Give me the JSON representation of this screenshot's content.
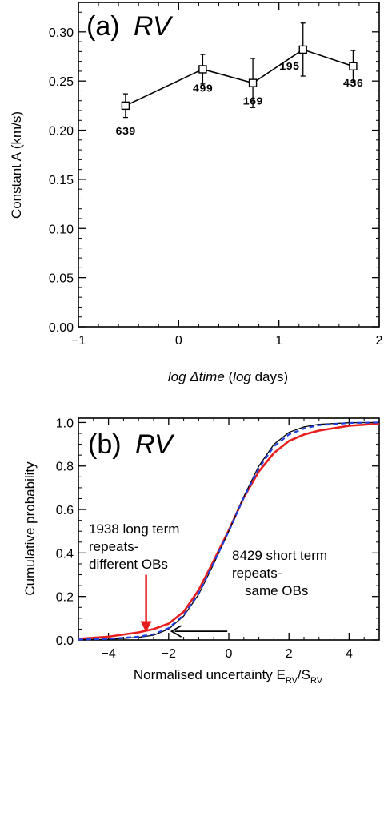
{
  "chart_data": [
    {
      "type": "line",
      "panel_label": "(a)",
      "title": "RV",
      "xlabel_parts": [
        "log",
        " Δtime",
        "  (",
        "log",
        " days)"
      ],
      "ylabel": "Constant A (km/s)",
      "xlim": [
        -1,
        2
      ],
      "ylim": [
        0,
        0.33
      ],
      "x_ticks": [
        -1,
        0,
        1,
        2
      ],
      "y_ticks": [
        "0.00",
        "0.05",
        "0.10",
        "0.15",
        "0.20",
        "0.25",
        "0.30"
      ],
      "y_tick_values": [
        0,
        0.05,
        0.1,
        0.15,
        0.2,
        0.25,
        0.3
      ],
      "marker": "open-square",
      "points": [
        {
          "x": -0.53,
          "y": 0.225,
          "err": 0.012,
          "label": "639"
        },
        {
          "x": 0.24,
          "y": 0.262,
          "err": 0.015,
          "label": "499"
        },
        {
          "x": 0.74,
          "y": 0.248,
          "err": 0.025,
          "label": "169"
        },
        {
          "x": 1.24,
          "y": 0.282,
          "err": 0.027,
          "label": "195"
        },
        {
          "x": 1.74,
          "y": 0.265,
          "err": 0.016,
          "label": "436"
        }
      ]
    },
    {
      "type": "line",
      "panel_label": "(b)",
      "title": "RV",
      "xlabel_parts": [
        "Normalised uncertainty E",
        "RV",
        "/S",
        "RV"
      ],
      "ylabel": "Cumulative probability",
      "xlim": [
        -5,
        5
      ],
      "ylim": [
        0,
        1.02
      ],
      "x_ticks": [
        -4,
        -2,
        0,
        2,
        4
      ],
      "y_ticks": [
        "0.0",
        "0.2",
        "0.4",
        "0.6",
        "0.8",
        "1.0"
      ],
      "y_tick_values": [
        0,
        0.2,
        0.4,
        0.6,
        0.8,
        1.0
      ],
      "series": [
        {
          "color": "#000000",
          "style": "solid",
          "x": [
            -5,
            -4,
            -3,
            -2.5,
            -2,
            -1.5,
            -1,
            -0.5,
            0,
            0.5,
            1,
            1.5,
            2,
            2.5,
            3,
            4,
            5
          ],
          "y": [
            0.001,
            0.003,
            0.012,
            0.022,
            0.05,
            0.11,
            0.21,
            0.35,
            0.5,
            0.66,
            0.8,
            0.9,
            0.955,
            0.98,
            0.992,
            0.999,
            1.0
          ]
        },
        {
          "color": "#1f3fe0",
          "style": "dashed",
          "x": [
            -5,
            -4,
            -3,
            -2.5,
            -2,
            -1.5,
            -1,
            -0.5,
            0,
            0.5,
            1,
            1.5,
            2,
            2.5,
            3,
            4,
            5
          ],
          "y": [
            0.002,
            0.005,
            0.015,
            0.027,
            0.055,
            0.115,
            0.215,
            0.355,
            0.5,
            0.655,
            0.79,
            0.89,
            0.945,
            0.972,
            0.988,
            0.998,
            1.0
          ]
        },
        {
          "color": "#e81e1e",
          "style": "solid",
          "x": [
            -5,
            -4,
            -3,
            -2.5,
            -2,
            -1.5,
            -1,
            -0.5,
            0,
            0.5,
            1,
            1.5,
            2,
            2.5,
            3,
            4,
            5
          ],
          "y": [
            0.005,
            0.015,
            0.035,
            0.05,
            0.075,
            0.13,
            0.23,
            0.365,
            0.505,
            0.655,
            0.775,
            0.86,
            0.915,
            0.945,
            0.963,
            0.985,
            0.995
          ]
        }
      ],
      "annotations": [
        {
          "text": [
            "1938 long term",
            "repeats-",
            "different OBs"
          ],
          "color": "#000000"
        },
        {
          "text": [
            "8429 short term",
            "repeats-",
            "same OBs"
          ],
          "color": "#000000"
        }
      ],
      "arrows": [
        {
          "color": "#e81e1e",
          "direction": "down",
          "target_x": -2.75,
          "target_y": 0.035,
          "from_y": 0.3
        },
        {
          "color": "#000000",
          "direction": "left",
          "target_x": -1.9,
          "target_y": 0.04,
          "from_x": -0.05
        }
      ]
    }
  ]
}
